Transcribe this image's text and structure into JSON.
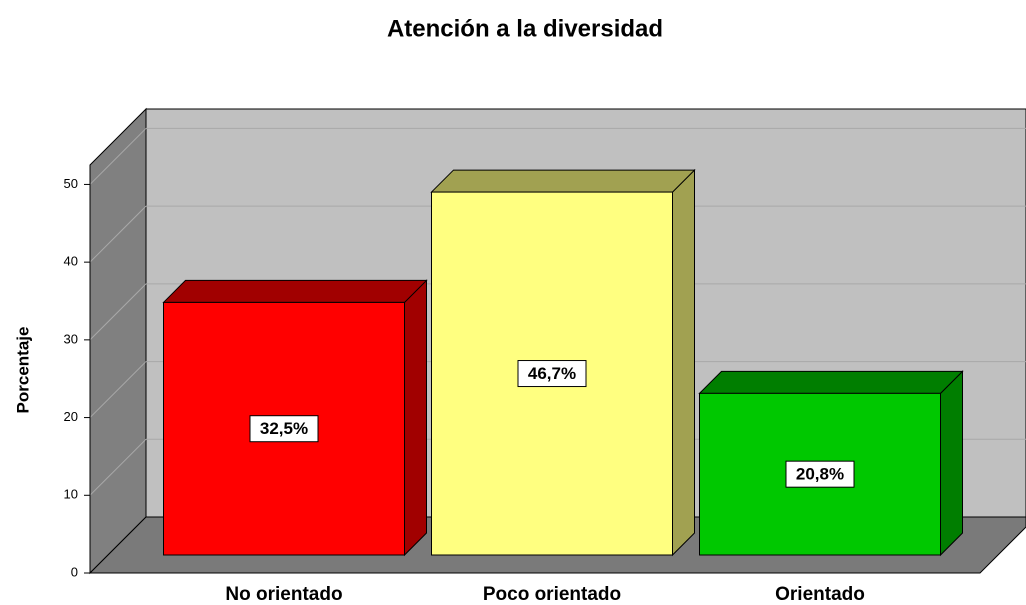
{
  "chart_data": {
    "type": "bar3d",
    "title": "Atención a la diversidad",
    "y_label": "Porcentaje",
    "categories": [
      "No orientado",
      "Poco orientado",
      "Orientado"
    ],
    "values": [
      32.5,
      46.7,
      20.8
    ],
    "value_labels": [
      "32,5%",
      "46,7%",
      "20,8%"
    ],
    "colors": [
      "#ff0000",
      "#ffff80",
      "#00c800"
    ],
    "ylim": [
      0,
      52.5
    ],
    "yticks": [
      0,
      10,
      20,
      30,
      40,
      50
    ],
    "grid": true
  }
}
